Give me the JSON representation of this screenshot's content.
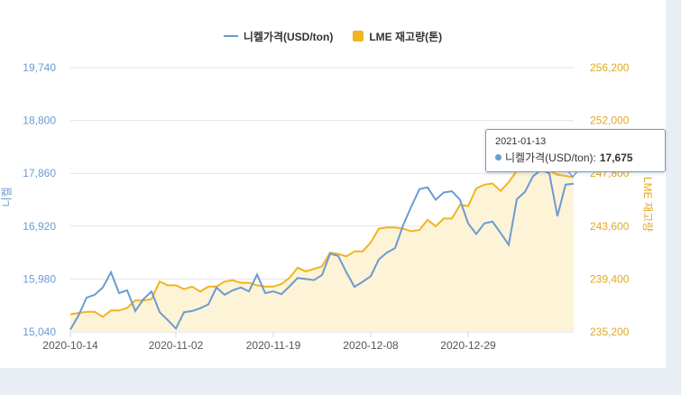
{
  "legend": {
    "series1": "니켈가격(USD/ton)",
    "series2": "LME 재고량(톤)"
  },
  "axes": {
    "left_title": "니켈",
    "right_title": "LME 재고량"
  },
  "tooltip": {
    "date": "2021-01-13",
    "label": "니켈가격(USD/ton):",
    "value": "17,675"
  },
  "colors": {
    "price": "#6b9bd2",
    "stock": "#f0b520",
    "area": "#fdf3d6"
  },
  "chart_data": {
    "type": "line",
    "x_tick_labels": [
      "2020-10-14",
      "2020-11-02",
      "2020-11-19",
      "2020-12-08",
      "2020-12-29"
    ],
    "x_tick_index": [
      0,
      13,
      25,
      37,
      49
    ],
    "y_left": {
      "label": "니켈",
      "ticks": [
        15040,
        15980,
        16920,
        17860,
        18800,
        19740
      ],
      "tick_labels": [
        "15,040",
        "15,980",
        "16,920",
        "17,860",
        "18,800",
        "19,740"
      ],
      "range": [
        15040,
        19740
      ]
    },
    "y_right": {
      "label": "LME 재고량",
      "ticks": [
        235200,
        239400,
        243600,
        247800,
        252000,
        256200
      ],
      "tick_labels": [
        "235,200",
        "239,400",
        "243,600",
        "247,800",
        "252,000",
        "256,200"
      ],
      "range": [
        235200,
        256200
      ]
    },
    "grid": true,
    "legend_position": "top-center",
    "series": [
      {
        "name": "니켈가격(USD/ton)",
        "axis": "left",
        "values": [
          15080,
          15330,
          15650,
          15700,
          15830,
          16100,
          15730,
          15780,
          15410,
          15620,
          15760,
          15390,
          15250,
          15100,
          15390,
          15410,
          15460,
          15530,
          15830,
          15700,
          15780,
          15830,
          15760,
          16060,
          15730,
          15760,
          15710,
          15850,
          16000,
          15980,
          15960,
          16050,
          16430,
          16390,
          16100,
          15840,
          15930,
          16030,
          16330,
          16450,
          16530,
          16940,
          17270,
          17580,
          17610,
          17390,
          17520,
          17540,
          17390,
          16970,
          16780,
          16970,
          17000,
          16800,
          16590,
          17400,
          17530,
          17810,
          17920,
          17860,
          17100,
          17660,
          17675
        ]
      },
      {
        "name": "LME 재고량(톤)",
        "axis": "right",
        "values": [
          236600,
          236700,
          236800,
          236800,
          236400,
          236900,
          236900,
          237100,
          237700,
          237700,
          237800,
          239200,
          238900,
          238900,
          238600,
          238800,
          238400,
          238800,
          238800,
          239200,
          239300,
          239100,
          239100,
          238900,
          238800,
          238800,
          239000,
          239500,
          240300,
          240000,
          240200,
          240400,
          241500,
          241400,
          241200,
          241600,
          241600,
          242300,
          243400,
          243500,
          243500,
          243400,
          243200,
          243300,
          244100,
          243600,
          244200,
          244200,
          245300,
          245200,
          246600,
          246900,
          247000,
          246400,
          247100,
          248000,
          248100,
          248100,
          248400,
          248000,
          247700,
          247600,
          247500
        ]
      }
    ]
  }
}
